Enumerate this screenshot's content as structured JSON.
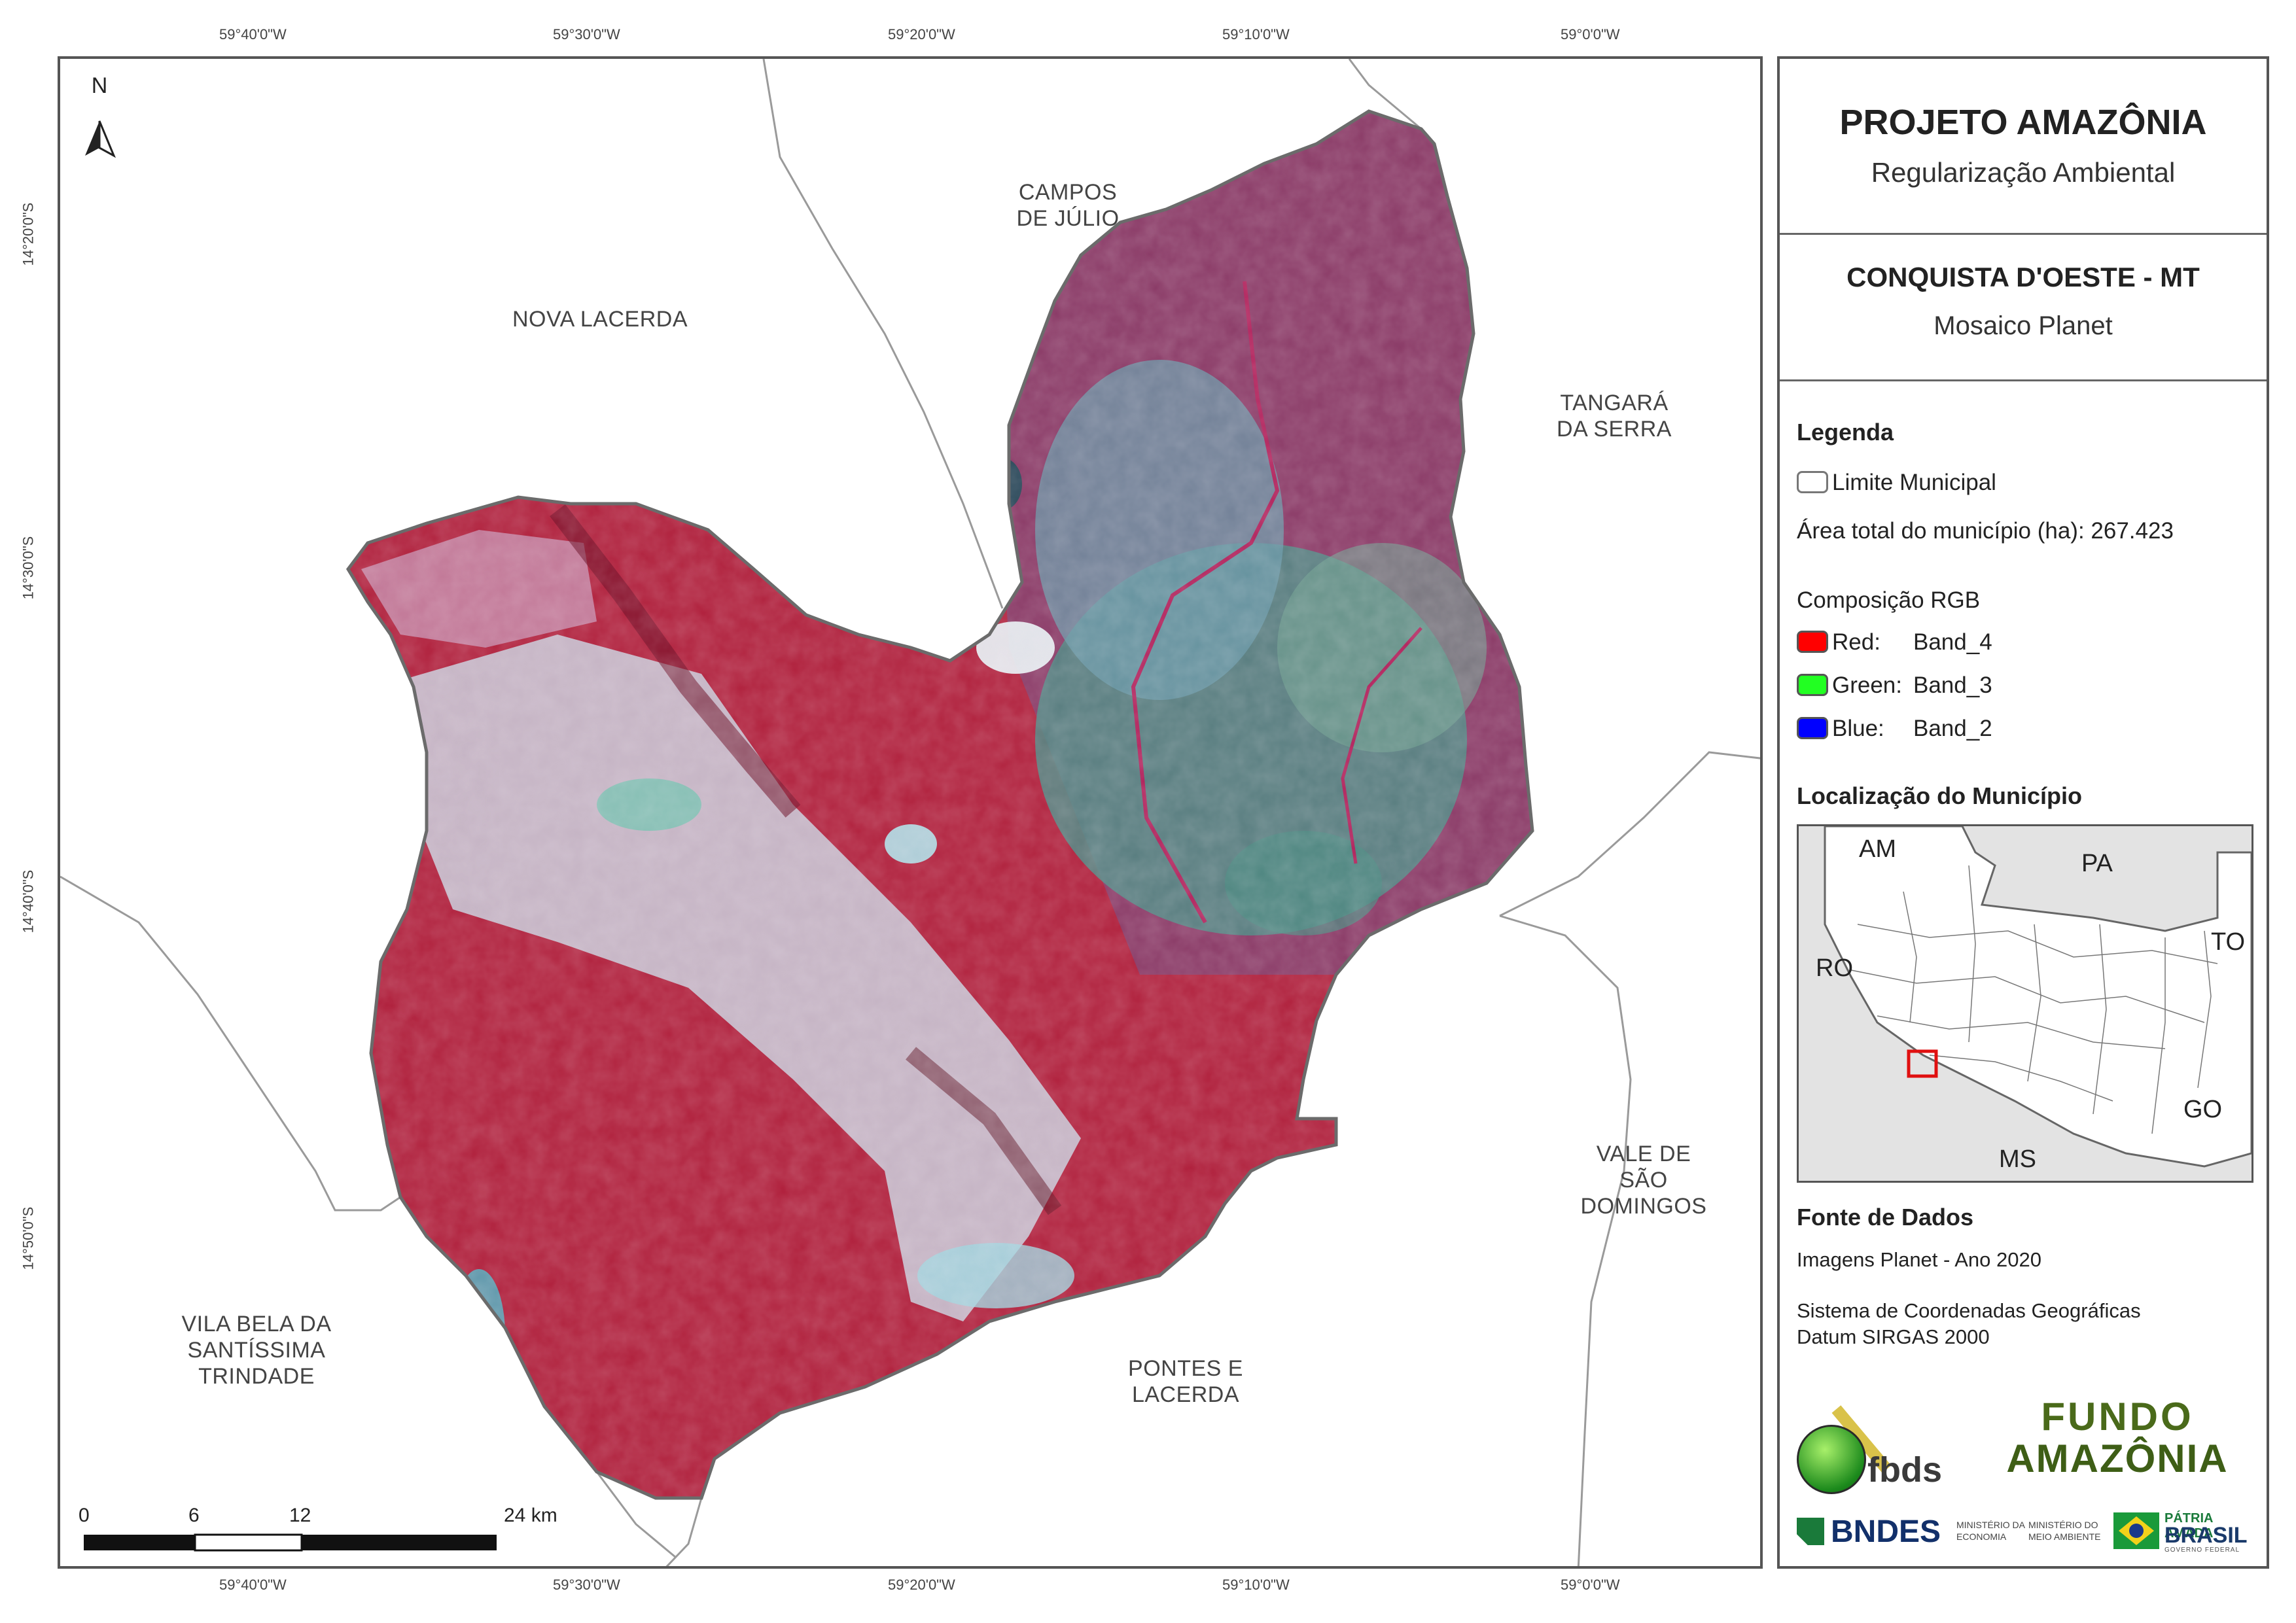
{
  "map": {
    "top_lon_labels": [
      "59°40'0\"W",
      "59°30'0\"W",
      "59°20'0\"W",
      "59°10'0\"W",
      "59°0'0\"W"
    ],
    "bottom_lon_labels": [
      "59°40'0\"W",
      "59°30'0\"W",
      "59°20'0\"W",
      "59°10'0\"W",
      "59°0'0\"W"
    ],
    "lat_labels": [
      "14°20'0\"S",
      "14°30'0\"S",
      "14°40'0\"S",
      "14°50'0\"S"
    ],
    "north_label": "N",
    "neighbors": {
      "campos_de_julio": "CAMPOS\nDE JÚLIO",
      "nova_lacerda": "NOVA LACERDA",
      "tangara_da_serra": "TANGARÁ\nDA SERRA",
      "vale_de_sao_domingos": "VALE DE SÃO\nDOMINGOS",
      "pontes_e_lacerda": "PONTES E\nLACERDA",
      "vila_bela": "VILA BELA DA\nSANTÍSSIMA\nTRINDADE"
    },
    "scale_bar": {
      "labels": [
        "0",
        "6",
        "12",
        "24 km"
      ],
      "unit": "km"
    },
    "colors": {
      "vegetation": "#b0203c",
      "cleared": "#c8d6e0",
      "boundary": "#6b6b6b"
    }
  },
  "panel": {
    "title": "PROJETO AMAZÔNIA",
    "subtitle": "Regularização Ambiental",
    "municipality": "CONQUISTA D'OESTE - MT",
    "product": "Mosaico Planet",
    "legend": {
      "heading": "Legenda",
      "boundary_label": "Limite Municipal",
      "area_text": "Área total do município (ha): 267.423",
      "rgb_heading": "Composição RGB",
      "bands": [
        {
          "channel": "Red:",
          "band": "Band_4",
          "color": "#ff0000"
        },
        {
          "channel": "Green:",
          "band": "Band_3",
          "color": "#22ff22"
        },
        {
          "channel": "Blue:",
          "band": "Band_2",
          "color": "#0000ff"
        }
      ]
    },
    "location": {
      "heading": "Localização do Município",
      "states": [
        "AM",
        "PA",
        "RO",
        "TO",
        "GO",
        "MS"
      ]
    },
    "sources": {
      "heading": "Fonte de Dados",
      "images": "Imagens Planet - Ano 2020",
      "crs_line1": "Sistema de Coordenadas Geográficas",
      "crs_line2": "Datum SIRGAS 2000"
    },
    "logos": {
      "fbds": "fbds",
      "fundo_line1": "FUNDO",
      "fundo_line2": "AMAZÔNIA",
      "bndes": "BNDES",
      "min_economia": "MINISTÉRIO DA\nECONOMIA",
      "min_meio": "MINISTÉRIO DO\nMEIO AMBIENTE",
      "patria_line1": "PÁTRIA AMADA",
      "patria_line2": "BRASIL",
      "patria_line3": "GOVERNO FEDERAL"
    }
  }
}
